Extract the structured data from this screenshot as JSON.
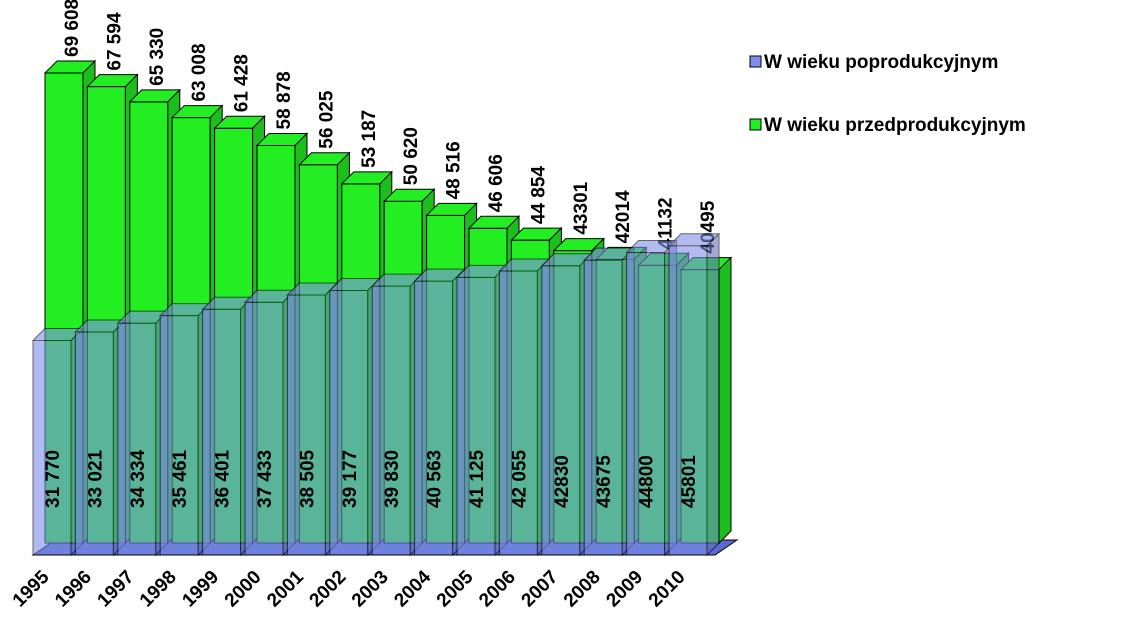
{
  "chart_data": {
    "type": "bar3d",
    "categories": [
      "1995",
      "1996",
      "1997",
      "1998",
      "1999",
      "2000",
      "2001",
      "2002",
      "2003",
      "2004",
      "2005",
      "2006",
      "2007",
      "2008",
      "2009",
      "2010"
    ],
    "series": [
      {
        "name": "W wieku poprodukcyjnym",
        "color": "#7f8fe8",
        "values": [
          31770,
          33021,
          34334,
          35461,
          36401,
          37433,
          38505,
          39177,
          39830,
          40563,
          41125,
          42055,
          42830,
          43675,
          44800,
          45801
        ],
        "value_labels": [
          "31 770",
          "33 021",
          "34 334",
          "35 461",
          "36 401",
          "37 433",
          "38 505",
          "39 177",
          "39 830",
          "40 563",
          "41 125",
          "42 055",
          "42830",
          "43675",
          "44800",
          "45801"
        ]
      },
      {
        "name": "W wieku przedprodukcyjnym",
        "color": "#22ee22",
        "values": [
          69608,
          67594,
          65330,
          63008,
          61428,
          58878,
          56025,
          53187,
          50620,
          48516,
          46606,
          44854,
          43301,
          42014,
          41132,
          40495
        ],
        "value_labels": [
          "69 608",
          "67 594",
          "65 330",
          "63 008",
          "61 428",
          "58 878",
          "56 025",
          "53 187",
          "50 620",
          "48 516",
          "46 606",
          "44 854",
          "43301",
          "42014",
          "41132",
          "40495"
        ]
      }
    ],
    "legend": "right"
  }
}
